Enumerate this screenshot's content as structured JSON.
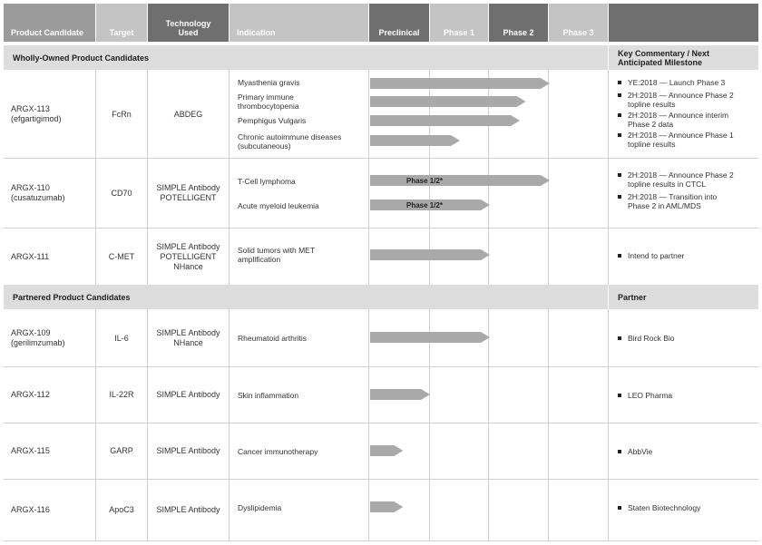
{
  "headers": {
    "product_candidate": "Product Candidate",
    "target": "Target",
    "technology": "Technology Used",
    "indication": "Indication",
    "preclinical": "Preclinical",
    "phase1": "Phase 1",
    "phase2": "Phase 2",
    "phase3": "Phase 3",
    "commentary": "Key Commentary / Next Anticipated Milestone",
    "partner": "Partner"
  },
  "sections": {
    "wholly_owned": "Wholly-Owned Product Candidates",
    "partnered": "Partnered Product Candidates"
  },
  "rows": [
    {
      "candidate": "ARGX-113",
      "sub": "(efgartigimod)",
      "target": "FcRn",
      "technology": "ABDEG",
      "indications": [
        {
          "text": "Myasthenia gravis",
          "end_phase": 3.0
        },
        {
          "text": "Primary immune thrombocytopenia",
          "end_phase": 2.6
        },
        {
          "text": "Pemphigus Vulgaris",
          "end_phase": 2.5
        },
        {
          "text": "Chronic autoimmune diseases (subcutaneous)",
          "end_phase": 1.5
        }
      ],
      "comments": [
        "YE:2018 — Launch Phase 3",
        "2H:2018 — Announce Phase 2 topline results",
        "2H:2018 — Announce interim Phase 2 data",
        "2H:2018 — Announce Phase 1 topline results"
      ]
    },
    {
      "candidate": "ARGX-110",
      "sub": "(cusatuzumab)",
      "target": "CD70",
      "technology": "SIMPLE Antibody POTELLIGENT",
      "indications": [
        {
          "text": "T-Cell lymphoma",
          "end_phase": 3.0,
          "label": "Phase 1/2*"
        },
        {
          "text": "Acute myeloid leukemia",
          "end_phase": 2.0,
          "label": "Phase 1/2*"
        }
      ],
      "comments": [
        "2H:2018 — Announce Phase 2 topline results in CTCL",
        "2H:2018 — Transition into Phase 2 in AML/MDS"
      ]
    },
    {
      "candidate": "ARGX-111",
      "sub": "",
      "target": "C-MET",
      "technology": "SIMPLE Antibody POTELLIGENT NHance",
      "indications": [
        {
          "text": "Solid tumors with MET amplification",
          "end_phase": 2.0
        }
      ],
      "comments": [
        "Intend to partner"
      ]
    },
    {
      "candidate": "ARGX-109",
      "sub": "(gerilimzumab)",
      "target": "IL-6",
      "technology": "SIMPLE Antibody NHance",
      "indications": [
        {
          "text": "Rheumatoid arthritis",
          "end_phase": 2.0
        }
      ],
      "comments": [
        "Bird Rock Bio"
      ]
    },
    {
      "candidate": "ARGX-112",
      "sub": "",
      "target": "IL-22R",
      "technology": "SIMPLE Antibody",
      "indications": [
        {
          "text": "Skin inflammation",
          "end_phase": 1.0
        }
      ],
      "comments": [
        "LEO Pharma"
      ]
    },
    {
      "candidate": "ARGX-115",
      "sub": "",
      "target": "GARP",
      "technology": "SIMPLE Antibody",
      "indications": [
        {
          "text": "Cancer immunotherapy",
          "end_phase": 0.55
        }
      ],
      "comments": [
        "AbbVie"
      ]
    },
    {
      "candidate": "ARGX-116",
      "sub": "",
      "target": "ApoC3",
      "technology": "SIMPLE Antibody",
      "indications": [
        {
          "text": "Dyslipidemia",
          "end_phase": 0.55
        }
      ],
      "comments": [
        "Staten Biotechnology"
      ]
    }
  ],
  "colors": {
    "header_mid": "#9b9b9b",
    "header_dark": "#6f6f6f",
    "header_light": "#c4c4c4",
    "band": "#dddddd",
    "bar": "#a9a9a9"
  }
}
